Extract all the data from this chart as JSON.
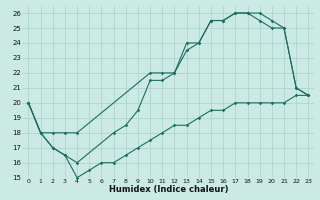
{
  "xlabel": "Humidex (Indice chaleur)",
  "xlim": [
    -0.5,
    23.5
  ],
  "ylim": [
    15,
    26.5
  ],
  "yticks": [
    15,
    16,
    17,
    18,
    19,
    20,
    21,
    22,
    23,
    24,
    25,
    26
  ],
  "xticks": [
    0,
    1,
    2,
    3,
    4,
    5,
    6,
    7,
    8,
    9,
    10,
    11,
    12,
    13,
    14,
    15,
    16,
    17,
    18,
    19,
    20,
    21,
    22,
    23
  ],
  "bg_color": "#cceae4",
  "grid_color": "#b0d4ce",
  "line_color": "#1a6e60",
  "line1_x": [
    0,
    1,
    2,
    3,
    4,
    10,
    11,
    12,
    13,
    14,
    15,
    16,
    17,
    18,
    19,
    20,
    21,
    22,
    23
  ],
  "line1_y": [
    20,
    18,
    18,
    18,
    18,
    22,
    22,
    22,
    24,
    24,
    25.5,
    25.5,
    26,
    26,
    26,
    25.5,
    25,
    21,
    20.5
  ],
  "line2_x": [
    0,
    1,
    2,
    3,
    4,
    7,
    8,
    9,
    10,
    11,
    12,
    13,
    14,
    15,
    16,
    17,
    18,
    19,
    20,
    21,
    22,
    23
  ],
  "line2_y": [
    20,
    18,
    17,
    16.5,
    16,
    18,
    18.5,
    19.5,
    21.5,
    21.5,
    22,
    23.5,
    24,
    25.5,
    25.5,
    26,
    26,
    25.5,
    25,
    25,
    21,
    20.5
  ],
  "line3_x": [
    0,
    1,
    2,
    3,
    4,
    5,
    6,
    7,
    8,
    9,
    10,
    11,
    12,
    13,
    14,
    15,
    16,
    17,
    18,
    19,
    20,
    21,
    22,
    23
  ],
  "line3_y": [
    20,
    18,
    17,
    16.5,
    15,
    15.5,
    16,
    16,
    16.5,
    17,
    17.5,
    18,
    18.5,
    18.5,
    19,
    19.5,
    19.5,
    20,
    20,
    20,
    20,
    20,
    20.5,
    20.5
  ]
}
